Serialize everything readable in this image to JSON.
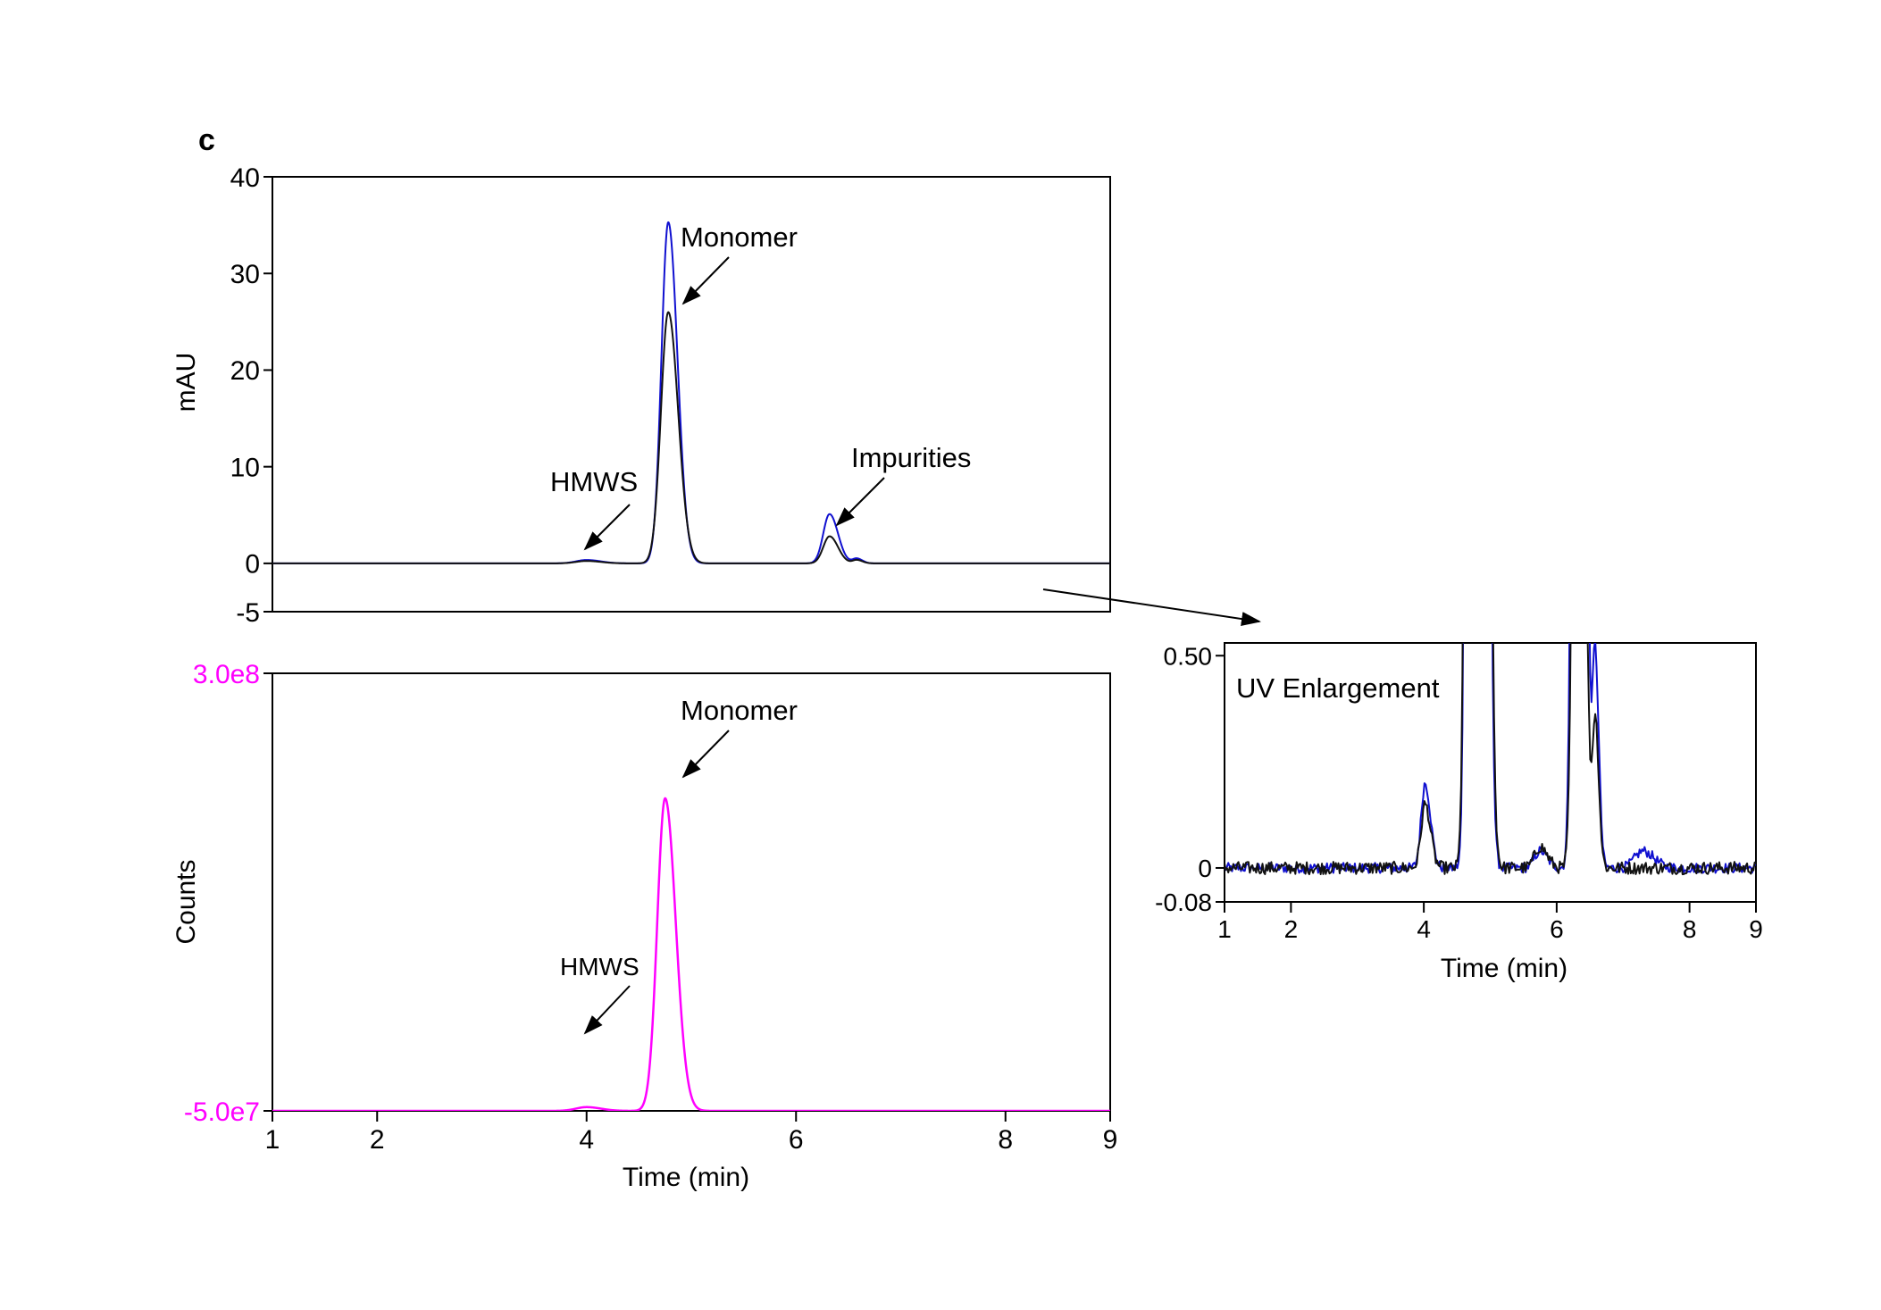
{
  "panel_label": "c",
  "colors": {
    "blue_trace": "#1010d0",
    "black_trace": "#111111",
    "magenta_trace": "#ff00ff",
    "axis": "#000000"
  },
  "chart_data": [
    {
      "id": "uv-chromatogram",
      "type": "line",
      "title": "",
      "xlabel": "",
      "ylabel": "mAU",
      "xlim": [
        1,
        9
      ],
      "ylim": [
        -5,
        40
      ],
      "yticks": [
        -5,
        0,
        10,
        20,
        30,
        40
      ],
      "yticklabels": [
        "-5",
        "0",
        "10",
        "20",
        "30",
        "40"
      ],
      "grid": false,
      "series": [
        {
          "color": "blue",
          "baseline": 0,
          "peaks": [
            {
              "x": 4.0,
              "height": 0.35,
              "width": 0.1
            },
            {
              "x": 4.78,
              "height": 35.3,
              "width": 0.065
            },
            {
              "x": 6.32,
              "height": 5.1,
              "width": 0.06
            },
            {
              "x": 6.58,
              "height": 0.5,
              "width": 0.04
            }
          ]
        },
        {
          "color": "black",
          "baseline": 0,
          "peaks": [
            {
              "x": 4.0,
              "height": 0.25,
              "width": 0.1
            },
            {
              "x": 4.78,
              "height": 26.0,
              "width": 0.07
            },
            {
              "x": 6.32,
              "height": 2.8,
              "width": 0.06
            },
            {
              "x": 6.58,
              "height": 0.35,
              "width": 0.04
            }
          ]
        }
      ],
      "annotations": [
        {
          "text": "Monomer",
          "x": 4.78
        },
        {
          "text": "HMWS",
          "x": 4.0
        },
        {
          "text": "Impurities",
          "x": 6.32
        }
      ]
    },
    {
      "id": "ms-chromatogram",
      "type": "line",
      "title": "",
      "xlabel": "Time (min)",
      "ylabel": "Counts",
      "xlim": [
        1,
        9
      ],
      "ylim": [
        -50000000,
        300000000
      ],
      "yticks": [
        -50000000,
        300000000
      ],
      "yticklabels": [
        "-5.0e7",
        "3.0e8"
      ],
      "xticks": [
        1,
        2,
        4,
        6,
        8,
        9
      ],
      "xticklabels": [
        "1",
        "2",
        "4",
        "6",
        "8",
        "9"
      ],
      "grid": false,
      "series": [
        {
          "color": "magenta",
          "baseline": -50000000,
          "peaks": [
            {
              "x": 4.0,
              "height": 3000000,
              "width": 0.1
            },
            {
              "x": 4.75,
              "height": 250000000,
              "width": 0.075
            }
          ]
        }
      ],
      "annotations": [
        {
          "text": "Monomer",
          "x": 4.75
        },
        {
          "text": "HMWS",
          "x": 4.0
        }
      ]
    },
    {
      "id": "uv-enlargement",
      "type": "line",
      "title": "UV Enlargement",
      "xlabel": "Time (min)",
      "ylabel": "",
      "xlim": [
        1,
        9
      ],
      "ylim": [
        -0.08,
        0.53
      ],
      "yticks": [
        -0.08,
        0,
        0.5
      ],
      "yticklabels": [
        "-0.08",
        "0",
        "0.50"
      ],
      "xticks": [
        1,
        2,
        4,
        6,
        8,
        9
      ],
      "xticklabels": [
        "1",
        "2",
        "4",
        "6",
        "8",
        "9"
      ],
      "grid": false,
      "series": [
        {
          "color": "blue",
          "baseline": 0,
          "noise": 0.012,
          "peaks": [
            {
              "x": 4.02,
              "height": 0.2,
              "width": 0.06
            },
            {
              "x": 4.78,
              "height": 35.3,
              "width": 0.065
            },
            {
              "x": 5.75,
              "height": 0.04,
              "width": 0.08
            },
            {
              "x": 6.32,
              "height": 5.1,
              "width": 0.06
            },
            {
              "x": 6.58,
              "height": 0.5,
              "width": 0.04
            },
            {
              "x": 7.3,
              "height": 0.04,
              "width": 0.12
            }
          ]
        },
        {
          "color": "black",
          "baseline": 0,
          "noise": 0.015,
          "peaks": [
            {
              "x": 4.02,
              "height": 0.15,
              "width": 0.06
            },
            {
              "x": 4.78,
              "height": 26.0,
              "width": 0.07
            },
            {
              "x": 5.75,
              "height": 0.05,
              "width": 0.08
            },
            {
              "x": 6.32,
              "height": 2.8,
              "width": 0.06
            },
            {
              "x": 6.58,
              "height": 0.35,
              "width": 0.04
            }
          ]
        }
      ]
    }
  ]
}
